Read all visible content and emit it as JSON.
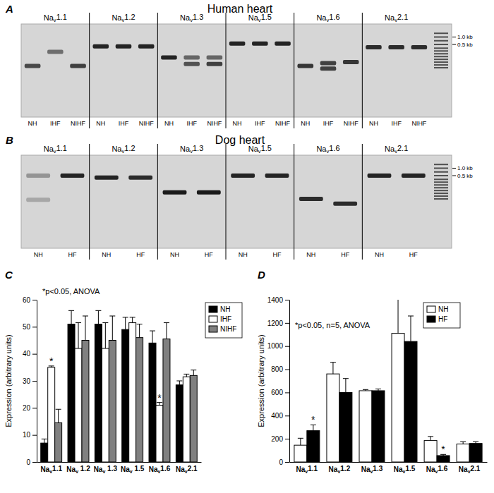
{
  "gels": [
    {
      "panel": "A",
      "title": "Human heart",
      "genes": [
        "Nav1.1",
        "Nav1.2",
        "Nav1.3",
        "Nav1.5",
        "Nav1.6",
        "Nav2.1"
      ],
      "lanes": [
        "NH",
        "IHF",
        "NIHF"
      ],
      "markers": [
        "1.0 kb",
        "0.5 kb"
      ]
    },
    {
      "panel": "B",
      "title": "Dog heart",
      "genes": [
        "Nav1.1",
        "Nav1.2",
        "Nav1.3",
        "Nav1.5",
        "Nav1.6",
        "Nav2.1"
      ],
      "lanes": [
        "NH",
        "HF"
      ],
      "markers": [
        "1.0 kb",
        "0.5 kb"
      ]
    }
  ],
  "chart_data": [
    {
      "type": "bar",
      "panel": "C",
      "y_label": "Expression (arbitrary units)",
      "categories": [
        "Nav1.1",
        "Nav 1.2",
        "Nav 1.3",
        "Nav 1.5",
        "Nav1.6",
        "Nav2.1"
      ],
      "series": [
        {
          "name": "NH",
          "color": "#000000",
          "values": [
            7,
            51,
            51,
            49,
            44,
            28.5
          ],
          "errors": [
            1.5,
            5,
            5,
            4.5,
            4.5,
            1.5
          ]
        },
        {
          "name": "IHF",
          "color": "#ffffff",
          "values": [
            35,
            42,
            42,
            51.5,
            21,
            31.5
          ],
          "errors": [
            0.5,
            9.5,
            9.5,
            2,
            1,
            1
          ]
        },
        {
          "name": "NIHF",
          "color": "#808080",
          "values": [
            14.5,
            45,
            45,
            46,
            45.5,
            32
          ],
          "errors": [
            5,
            9,
            9,
            5,
            6,
            2
          ]
        }
      ],
      "ylim": [
        0,
        60
      ],
      "yticks": [
        0,
        10,
        20,
        30,
        40,
        50,
        60
      ],
      "legend": "right",
      "annotations": [
        {
          "text": "*p<0.05, ANOVA"
        },
        {
          "text": "*",
          "category": 0,
          "series": 1
        },
        {
          "text": "*",
          "category": 4,
          "series": 1
        }
      ]
    },
    {
      "type": "bar",
      "panel": "D",
      "y_label": "Expression (arbitrary units)",
      "categories": [
        "Nav1.1",
        "Nav1.2",
        "Nav1.3",
        "Nav1.5",
        "Nav1.6",
        "Nav2.1"
      ],
      "series": [
        {
          "name": "NH",
          "color": "#ffffff",
          "values": [
            145,
            760,
            615,
            1110,
            185,
            155
          ],
          "errors": [
            60,
            100,
            10,
            300,
            35,
            20
          ]
        },
        {
          "name": "HF",
          "color": "#000000",
          "values": [
            270,
            600,
            615,
            1040,
            55,
            160
          ],
          "errors": [
            50,
            120,
            15,
            220,
            10,
            15
          ]
        }
      ],
      "ylim": [
        0,
        1400
      ],
      "yticks": [
        0,
        200,
        400,
        600,
        800,
        1000,
        1200,
        1400
      ],
      "legend": "top-right",
      "annotations": [
        {
          "text": "*p<0.05, n=5, ANOVA"
        },
        {
          "text": "*",
          "category": 0,
          "series": 1
        },
        {
          "text": "*",
          "category": 4,
          "series": 1
        }
      ]
    }
  ]
}
